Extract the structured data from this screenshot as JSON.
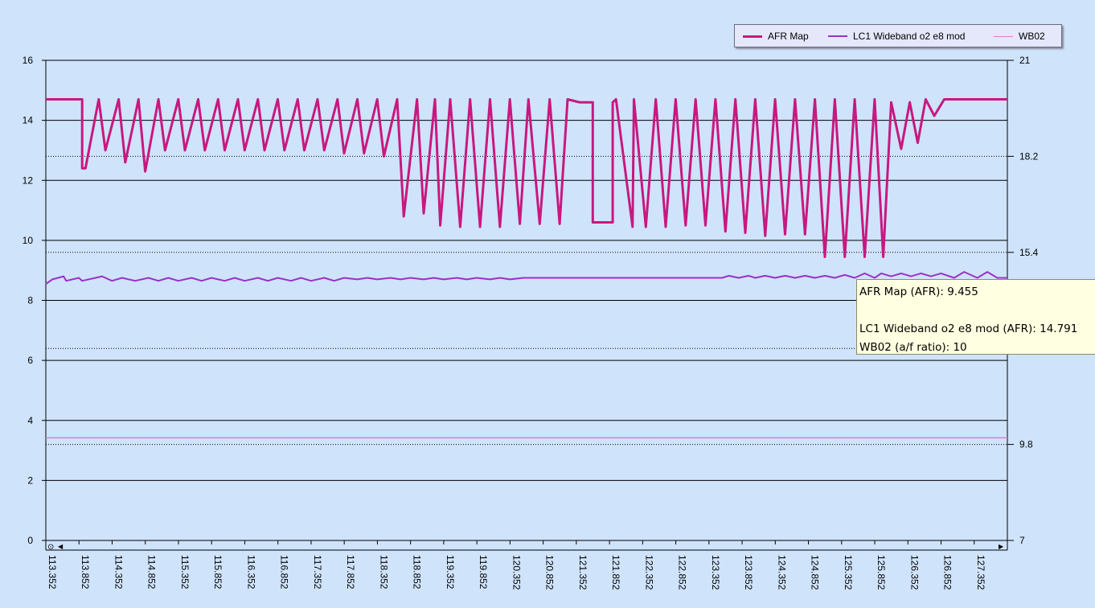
{
  "chart_data": {
    "type": "line",
    "legend_position": "top-right",
    "grid": true,
    "y_left": {
      "ylim": [
        0,
        16
      ],
      "ticks": [
        "0",
        "2",
        "4",
        "6",
        "8",
        "10",
        "12",
        "14",
        "16"
      ]
    },
    "y_right": {
      "ylim": [
        7,
        21
      ],
      "ticks": [
        "7",
        "9.8",
        "15.4",
        "18.2",
        "21"
      ]
    },
    "x": {
      "xlim": [
        113.352,
        127.852
      ],
      "ticks": [
        "113.352",
        "113.852",
        "114.352",
        "114.852",
        "115.352",
        "115.852",
        "116.352",
        "116.852",
        "117.352",
        "117.852",
        "118.352",
        "118.852",
        "119.352",
        "119.852",
        "120.352",
        "120.852",
        "121.352",
        "121.852",
        "122.352",
        "122.852",
        "123.352",
        "123.852",
        "124.352",
        "124.852",
        "125.352",
        "125.852",
        "126.352",
        "126.852",
        "127.352"
      ]
    },
    "series": [
      {
        "name": "AFR Map",
        "color": "#c8187f",
        "width": 3,
        "x": [
          113.352,
          113.9,
          113.9,
          113.95,
          114.15,
          114.25,
          114.45,
          114.55,
          114.75,
          114.85,
          115.05,
          115.15,
          115.35,
          115.45,
          115.65,
          115.75,
          115.95,
          116.05,
          116.25,
          116.35,
          116.55,
          116.65,
          116.85,
          116.95,
          117.15,
          117.25,
          117.45,
          117.55,
          117.75,
          117.85,
          118.05,
          118.15,
          118.35,
          118.45,
          118.65,
          118.75,
          118.95,
          119.05,
          119.22,
          119.3,
          119.45,
          119.6,
          119.75,
          119.9,
          120.05,
          120.2,
          120.35,
          120.5,
          120.63,
          120.8,
          120.95,
          121.1,
          121.22,
          121.4,
          121.6,
          121.6,
          121.9,
          121.9,
          121.95,
          122.2,
          122.22,
          122.4,
          122.55,
          122.7,
          122.85,
          123.0,
          123.15,
          123.3,
          123.45,
          123.6,
          123.75,
          123.9,
          124.05,
          124.2,
          124.35,
          124.5,
          124.65,
          124.8,
          124.95,
          125.1,
          125.25,
          125.4,
          125.55,
          125.7,
          125.85,
          125.98,
          126.1,
          126.25,
          126.38,
          126.5,
          126.62,
          126.75,
          126.9,
          127.0,
          127.18,
          127.3,
          127.45,
          127.55,
          127.852
        ],
        "y": [
          14.7,
          14.7,
          12.4,
          12.4,
          14.7,
          13.0,
          14.7,
          12.6,
          14.7,
          12.3,
          14.7,
          13.0,
          14.7,
          13.0,
          14.7,
          13.0,
          14.7,
          13.0,
          14.7,
          13.0,
          14.7,
          13.0,
          14.7,
          13.0,
          14.7,
          13.0,
          14.7,
          13.0,
          14.7,
          12.9,
          14.7,
          12.9,
          14.7,
          12.8,
          14.7,
          10.8,
          14.7,
          10.9,
          14.7,
          10.5,
          14.7,
          10.45,
          14.7,
          10.45,
          14.7,
          10.45,
          14.7,
          10.55,
          14.7,
          10.55,
          14.7,
          10.55,
          14.7,
          14.6,
          14.6,
          10.6,
          10.6,
          14.6,
          14.7,
          10.45,
          14.7,
          10.45,
          14.7,
          10.45,
          14.7,
          10.5,
          14.7,
          10.5,
          14.7,
          10.3,
          14.7,
          10.25,
          14.7,
          10.15,
          14.7,
          10.2,
          14.7,
          10.2,
          14.7,
          9.45,
          14.7,
          9.45,
          14.7,
          9.45,
          14.7,
          9.45,
          14.6,
          13.05,
          14.6,
          13.25,
          14.7,
          14.15,
          14.7,
          14.7,
          14.7,
          14.7,
          14.7,
          14.7,
          14.7
        ]
      },
      {
        "name": "LC1 Wideband o2 e8 mod",
        "color": "#9b30c8",
        "width": 2,
        "x": [
          113.352,
          113.45,
          113.62,
          113.66,
          113.85,
          113.9,
          114.1,
          114.2,
          114.35,
          114.5,
          114.7,
          114.9,
          115.05,
          115.2,
          115.35,
          115.55,
          115.7,
          115.85,
          116.05,
          116.2,
          116.35,
          116.55,
          116.7,
          116.85,
          117.05,
          117.2,
          117.35,
          117.55,
          117.7,
          117.85,
          118.05,
          118.2,
          118.35,
          118.55,
          118.7,
          118.85,
          119.05,
          119.2,
          119.35,
          119.55,
          119.7,
          119.85,
          120.05,
          120.2,
          120.35,
          120.55,
          120.6,
          123.55,
          123.65,
          123.8,
          123.95,
          124.05,
          124.2,
          124.35,
          124.5,
          124.65,
          124.8,
          124.95,
          125.1,
          125.25,
          125.4,
          125.55,
          125.7,
          125.85,
          125.95,
          126.1,
          126.25,
          126.4,
          126.55,
          126.7,
          126.85,
          127.05,
          127.2,
          127.4,
          127.55,
          127.7,
          127.852
        ],
        "y": [
          8.55,
          8.7,
          8.8,
          8.65,
          8.75,
          8.65,
          8.75,
          8.8,
          8.65,
          8.75,
          8.65,
          8.75,
          8.65,
          8.75,
          8.65,
          8.75,
          8.65,
          8.75,
          8.65,
          8.75,
          8.65,
          8.75,
          8.65,
          8.75,
          8.65,
          8.75,
          8.65,
          8.75,
          8.65,
          8.75,
          8.7,
          8.75,
          8.7,
          8.75,
          8.7,
          8.75,
          8.7,
          8.75,
          8.7,
          8.75,
          8.7,
          8.75,
          8.7,
          8.75,
          8.7,
          8.75,
          8.75,
          8.75,
          8.82,
          8.75,
          8.82,
          8.75,
          8.82,
          8.75,
          8.82,
          8.75,
          8.82,
          8.75,
          8.82,
          8.75,
          8.85,
          8.75,
          8.9,
          8.75,
          8.9,
          8.8,
          8.9,
          8.8,
          8.9,
          8.8,
          8.9,
          8.75,
          8.95,
          8.75,
          8.95,
          8.75,
          8.75
        ]
      },
      {
        "name": "WB02",
        "color": "#e07ad0",
        "width": 1.5,
        "x": [
          113.352,
          127.852
        ],
        "y": [
          3.42,
          3.42
        ]
      }
    ]
  },
  "tooltip": {
    "line1": "AFR Map (AFR): 9.455",
    "line2": "",
    "line3": "LC1 Wideband o2 e8 mod (AFR): 14.791",
    "line4": "WB02 (a/f ratio): 10"
  },
  "scrollbar": {
    "zoom_glyph": "⊙",
    "left_arrow": "◀",
    "right_arrow": "▶"
  }
}
